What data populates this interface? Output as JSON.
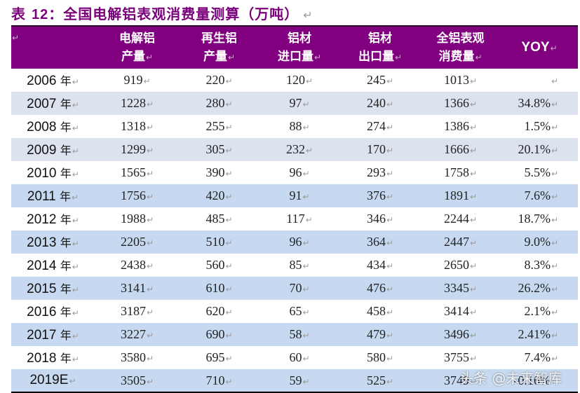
{
  "title": {
    "prefix": "表",
    "number": "12",
    "text": "：全国电解铝表观消费量测算（万吨）"
  },
  "return_mark": "↵",
  "table": {
    "columns": [
      {
        "line1": "",
        "line2": ""
      },
      {
        "line1": "电解铝",
        "line2": "产量"
      },
      {
        "line1": "再生铝",
        "line2": "产量"
      },
      {
        "line1": "铝材",
        "line2": "进口量"
      },
      {
        "line1": "铝材",
        "line2": "出口量"
      },
      {
        "line1": "全铝表观",
        "line2": "消费量"
      },
      {
        "line1": "YOY",
        "line2": ""
      }
    ],
    "year_suffix": "年",
    "rows": [
      {
        "year": "2006",
        "suffix": true,
        "primary": "919",
        "recycled": "220",
        "imports": "120",
        "exports": "245",
        "consumption": "1013",
        "yoy": "",
        "bg": "white"
      },
      {
        "year": "2007",
        "suffix": true,
        "primary": "1228",
        "recycled": "280",
        "imports": "97",
        "exports": "240",
        "consumption": "1366",
        "yoy": "34.8%",
        "bg": "gray"
      },
      {
        "year": "2008",
        "suffix": true,
        "primary": "1318",
        "recycled": "255",
        "imports": "88",
        "exports": "274",
        "consumption": "1386",
        "yoy": "1.5%",
        "bg": "white"
      },
      {
        "year": "2009",
        "suffix": true,
        "primary": "1299",
        "recycled": "305",
        "imports": "232",
        "exports": "170",
        "consumption": "1666",
        "yoy": "20.1%",
        "bg": "gray"
      },
      {
        "year": "2010",
        "suffix": true,
        "primary": "1565",
        "recycled": "390",
        "imports": "96",
        "exports": "293",
        "consumption": "1758",
        "yoy": "5.5%",
        "bg": "white"
      },
      {
        "year": "2011",
        "suffix": true,
        "primary": "1756",
        "recycled": "420",
        "imports": "91",
        "exports": "376",
        "consumption": "1891",
        "yoy": "7.6%",
        "bg": "blue"
      },
      {
        "year": "2012",
        "suffix": true,
        "primary": "1988",
        "recycled": "485",
        "imports": "117",
        "exports": "346",
        "consumption": "2244",
        "yoy": "18.7%",
        "bg": "white"
      },
      {
        "year": "2013",
        "suffix": true,
        "primary": "2205",
        "recycled": "510",
        "imports": "96",
        "exports": "364",
        "consumption": "2447",
        "yoy": "9.0%",
        "bg": "blue"
      },
      {
        "year": "2014",
        "suffix": true,
        "primary": "2438",
        "recycled": "560",
        "imports": "85",
        "exports": "434",
        "consumption": "2650",
        "yoy": "8.3%",
        "bg": "white"
      },
      {
        "year": "2015",
        "suffix": true,
        "primary": "3141",
        "recycled": "610",
        "imports": "70",
        "exports": "476",
        "consumption": "3345",
        "yoy": "26.2%",
        "bg": "blue"
      },
      {
        "year": "2016",
        "suffix": true,
        "primary": "3187",
        "recycled": "620",
        "imports": "65",
        "exports": "458",
        "consumption": "3414",
        "yoy": "2.1%",
        "bg": "white"
      },
      {
        "year": "2017",
        "suffix": true,
        "primary": "3227",
        "recycled": "690",
        "imports": "58",
        "exports": "479",
        "consumption": "3496",
        "yoy": "2.41%",
        "bg": "blue"
      },
      {
        "year": "2018",
        "suffix": true,
        "primary": "3580",
        "recycled": "695",
        "imports": "60",
        "exports": "580",
        "consumption": "3755",
        "yoy": "7.4%",
        "bg": "white"
      },
      {
        "year": "2019E",
        "suffix": false,
        "primary": "3505",
        "recycled": "710",
        "imports": "59",
        "exports": "525",
        "consumption": "3749",
        "yoy": "-0.16%",
        "bg": "blue"
      }
    ]
  },
  "colors": {
    "title": "#7b007b",
    "header_bg": "#800080",
    "row_gray": "#dce3ef",
    "row_blue": "#c6d9f0"
  },
  "watermark": "头条 @未来智库"
}
